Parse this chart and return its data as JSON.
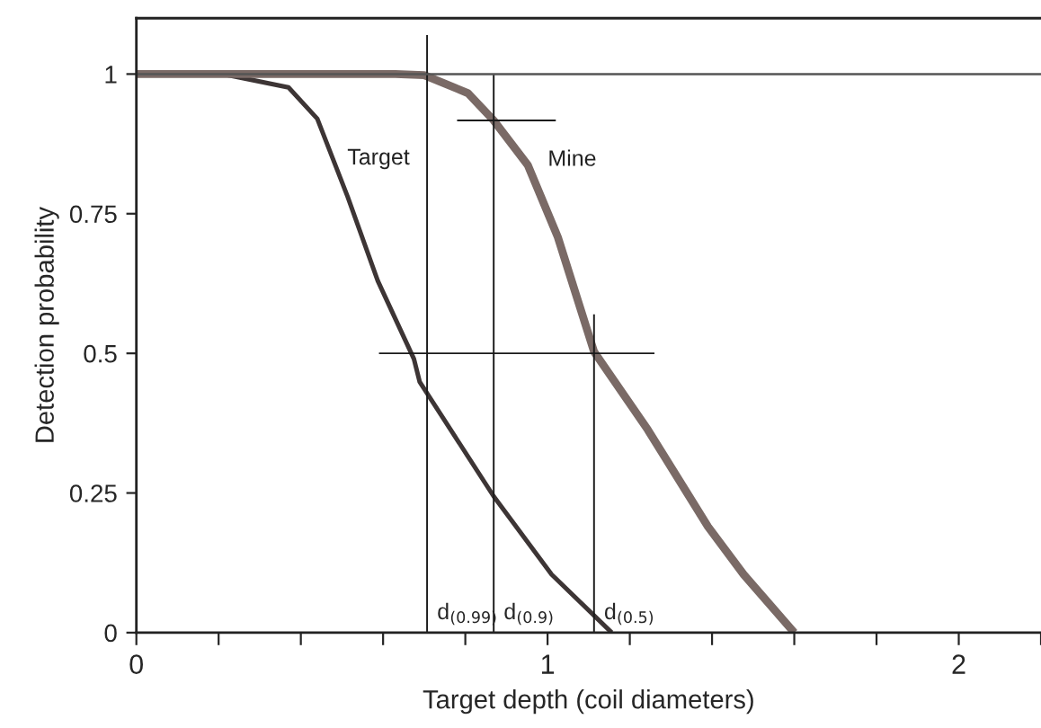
{
  "chart_data": {
    "type": "line",
    "xlabel": "Target depth (coil diameters)",
    "ylabel": "Detection probability",
    "xlim": [
      0,
      2.2
    ],
    "ylim": [
      0,
      1.1
    ],
    "xticks": [
      0,
      {
        "value": 0.2,
        "label": null
      },
      {
        "value": 0.4,
        "label": null
      },
      {
        "value": 0.6,
        "label": null
      },
      {
        "value": 0.8,
        "label": null
      },
      1,
      {
        "value": 1.2,
        "label": null
      },
      {
        "value": 1.4,
        "label": null
      },
      {
        "value": 1.6,
        "label": null
      },
      {
        "value": 1.8,
        "label": null
      },
      2,
      {
        "value": 2.2,
        "label": null
      }
    ],
    "yticks": [
      0,
      0.25,
      0.5,
      0.75,
      1
    ],
    "grid": false,
    "marker": "none",
    "line_style": "solid",
    "series": [
      {
        "name": "Target",
        "color": "#3d3535",
        "x": [
          0,
          0.21,
          0.37,
          0.44,
          0.514,
          0.587,
          0.675,
          0.689,
          0.869,
          1.01,
          1.156
        ],
        "values": [
          1,
          1,
          0.976,
          0.92,
          0.78,
          0.63,
          0.49,
          0.449,
          0.244,
          0.104,
          0
        ]
      },
      {
        "name": "Mine",
        "color": "#7a6a66",
        "x": [
          0,
          0.63,
          0.7,
          0.806,
          0.869,
          0.952,
          1.025,
          1.113,
          1.244,
          1.39,
          1.477,
          1.6
        ],
        "values": [
          1,
          1,
          0.998,
          0.966,
          0.917,
          0.837,
          0.708,
          0.503,
          0.363,
          0.19,
          0.104,
          0
        ]
      },
      {
        "color": "#1a1a1a",
        "x": [
          0.707,
          0.707
        ],
        "values": [
          0,
          1.07
        ]
      },
      {
        "color": "#1a1a1a",
        "x": [
          0.869,
          0.869
        ],
        "values": [
          0,
          1.0
        ]
      },
      {
        "color": "#1a1a1a",
        "x": [
          1.113,
          1.113
        ],
        "values": [
          0,
          0.57
        ]
      },
      {
        "color": "#1a1a1a",
        "x": [
          0.78,
          1.02
        ],
        "values": [
          0.917,
          0.917
        ]
      },
      {
        "color": "#1a1a1a",
        "x": [
          0.59,
          1.26
        ],
        "values": [
          0.5,
          0.5
        ]
      }
    ],
    "ref_lines": [
      {
        "axis": "y",
        "value": 1,
        "color": "#555555"
      }
    ],
    "annotations": [
      {
        "text": "d$_{(0.99)}$",
        "x": 0.707,
        "y": 0
      },
      {
        "text": "d$_{(0.9)}$",
        "x": 0.869,
        "y": 0
      },
      {
        "text": "d$_{(0.5)}$",
        "x": 1.113,
        "y": 0
      }
    ]
  }
}
